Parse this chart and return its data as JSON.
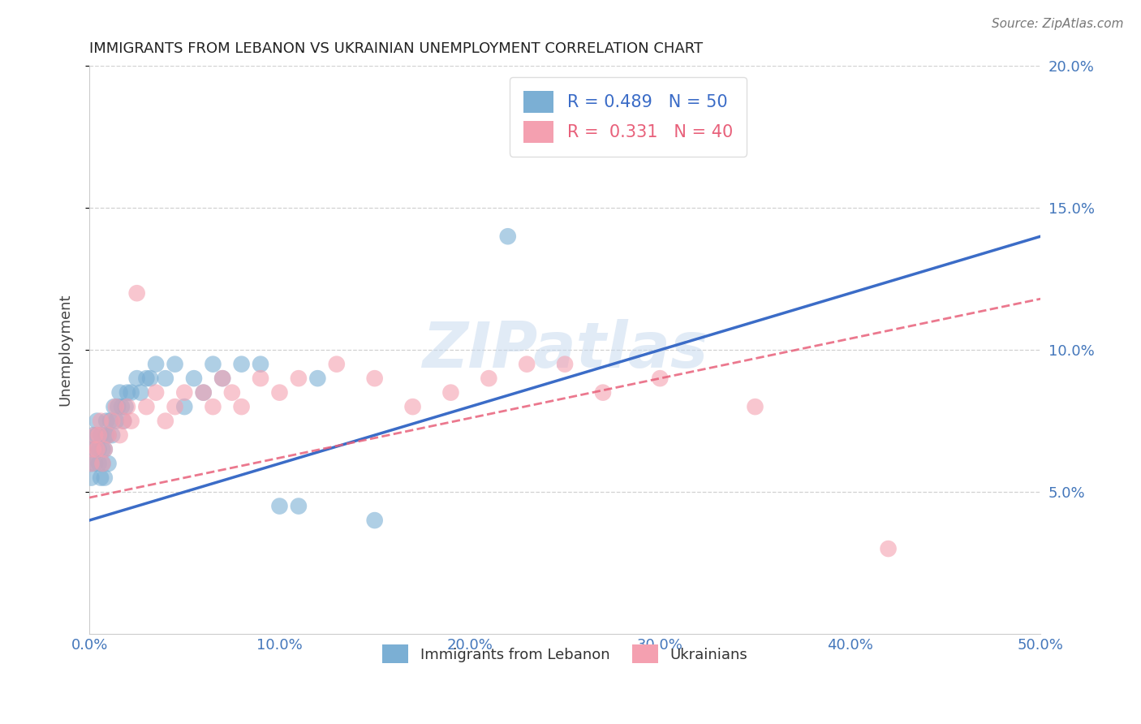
{
  "title": "IMMIGRANTS FROM LEBANON VS UKRAINIAN UNEMPLOYMENT CORRELATION CHART",
  "source": "Source: ZipAtlas.com",
  "ylabel": "Unemployment",
  "xlim": [
    0,
    0.5
  ],
  "ylim": [
    0,
    0.2
  ],
  "yticks": [
    0.05,
    0.1,
    0.15,
    0.2
  ],
  "xticks": [
    0.0,
    0.1,
    0.2,
    0.3,
    0.4,
    0.5
  ],
  "legend1_r": "0.489",
  "legend1_n": "50",
  "legend2_r": "0.331",
  "legend2_n": "40",
  "blue_color": "#7BAFD4",
  "pink_color": "#F4A0B0",
  "trend_blue_color": "#3B6CC7",
  "trend_pink_color": "#E8607A",
  "blue_points_x": [
    0.001,
    0.001,
    0.002,
    0.002,
    0.003,
    0.003,
    0.004,
    0.004,
    0.005,
    0.005,
    0.006,
    0.006,
    0.007,
    0.007,
    0.008,
    0.008,
    0.009,
    0.009,
    0.01,
    0.01,
    0.011,
    0.012,
    0.013,
    0.014,
    0.015,
    0.016,
    0.017,
    0.018,
    0.019,
    0.02,
    0.022,
    0.025,
    0.027,
    0.03,
    0.032,
    0.035,
    0.04,
    0.045,
    0.05,
    0.055,
    0.06,
    0.065,
    0.07,
    0.08,
    0.09,
    0.1,
    0.11,
    0.12,
    0.15,
    0.22
  ],
  "blue_points_y": [
    0.055,
    0.06,
    0.065,
    0.07,
    0.06,
    0.065,
    0.07,
    0.075,
    0.06,
    0.065,
    0.055,
    0.07,
    0.065,
    0.06,
    0.055,
    0.065,
    0.07,
    0.075,
    0.06,
    0.07,
    0.075,
    0.07,
    0.08,
    0.075,
    0.08,
    0.085,
    0.08,
    0.075,
    0.08,
    0.085,
    0.085,
    0.09,
    0.085,
    0.09,
    0.09,
    0.095,
    0.09,
    0.095,
    0.08,
    0.09,
    0.085,
    0.095,
    0.09,
    0.095,
    0.095,
    0.045,
    0.045,
    0.09,
    0.04,
    0.14
  ],
  "pink_points_x": [
    0.001,
    0.002,
    0.003,
    0.004,
    0.005,
    0.006,
    0.007,
    0.008,
    0.01,
    0.012,
    0.014,
    0.016,
    0.018,
    0.02,
    0.022,
    0.025,
    0.03,
    0.035,
    0.04,
    0.045,
    0.05,
    0.06,
    0.065,
    0.07,
    0.075,
    0.08,
    0.09,
    0.1,
    0.11,
    0.13,
    0.15,
    0.17,
    0.19,
    0.21,
    0.23,
    0.25,
    0.27,
    0.3,
    0.35,
    0.42
  ],
  "pink_points_y": [
    0.06,
    0.065,
    0.07,
    0.065,
    0.07,
    0.075,
    0.06,
    0.065,
    0.07,
    0.075,
    0.08,
    0.07,
    0.075,
    0.08,
    0.075,
    0.12,
    0.08,
    0.085,
    0.075,
    0.08,
    0.085,
    0.085,
    0.08,
    0.09,
    0.085,
    0.08,
    0.09,
    0.085,
    0.09,
    0.095,
    0.09,
    0.08,
    0.085,
    0.09,
    0.095,
    0.095,
    0.085,
    0.09,
    0.08,
    0.03
  ],
  "watermark": "ZIPatlas",
  "axis_color": "#4477BB",
  "title_color": "#222222",
  "grid_color": "#CCCCCC"
}
